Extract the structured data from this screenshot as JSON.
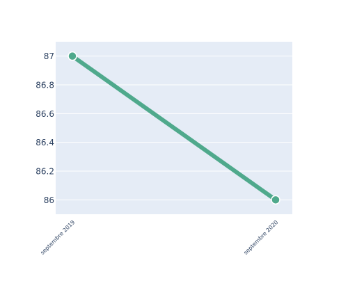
{
  "chart_data": {
    "type": "line",
    "title": "",
    "xlabel": "",
    "ylabel": "",
    "x": [
      "septembre 2019",
      "septembre 2020"
    ],
    "series": [
      {
        "values": [
          87,
          86
        ],
        "color": "#4fa98c",
        "marker_color": "#4fa98c",
        "marker_stroke": "#ffffff"
      }
    ],
    "ylim": [
      85.9,
      87.1
    ],
    "yticks": [
      86,
      86.2,
      86.4,
      86.6,
      86.8,
      87
    ],
    "ytick_labels": [
      "86",
      "86.2",
      "86.4",
      "86.6",
      "86.8",
      "87"
    ],
    "grid": true,
    "legend": "none",
    "background": "#e5ecf6",
    "gridline_color": "#ffffff",
    "tick_label_color": "#2a3f5f"
  }
}
